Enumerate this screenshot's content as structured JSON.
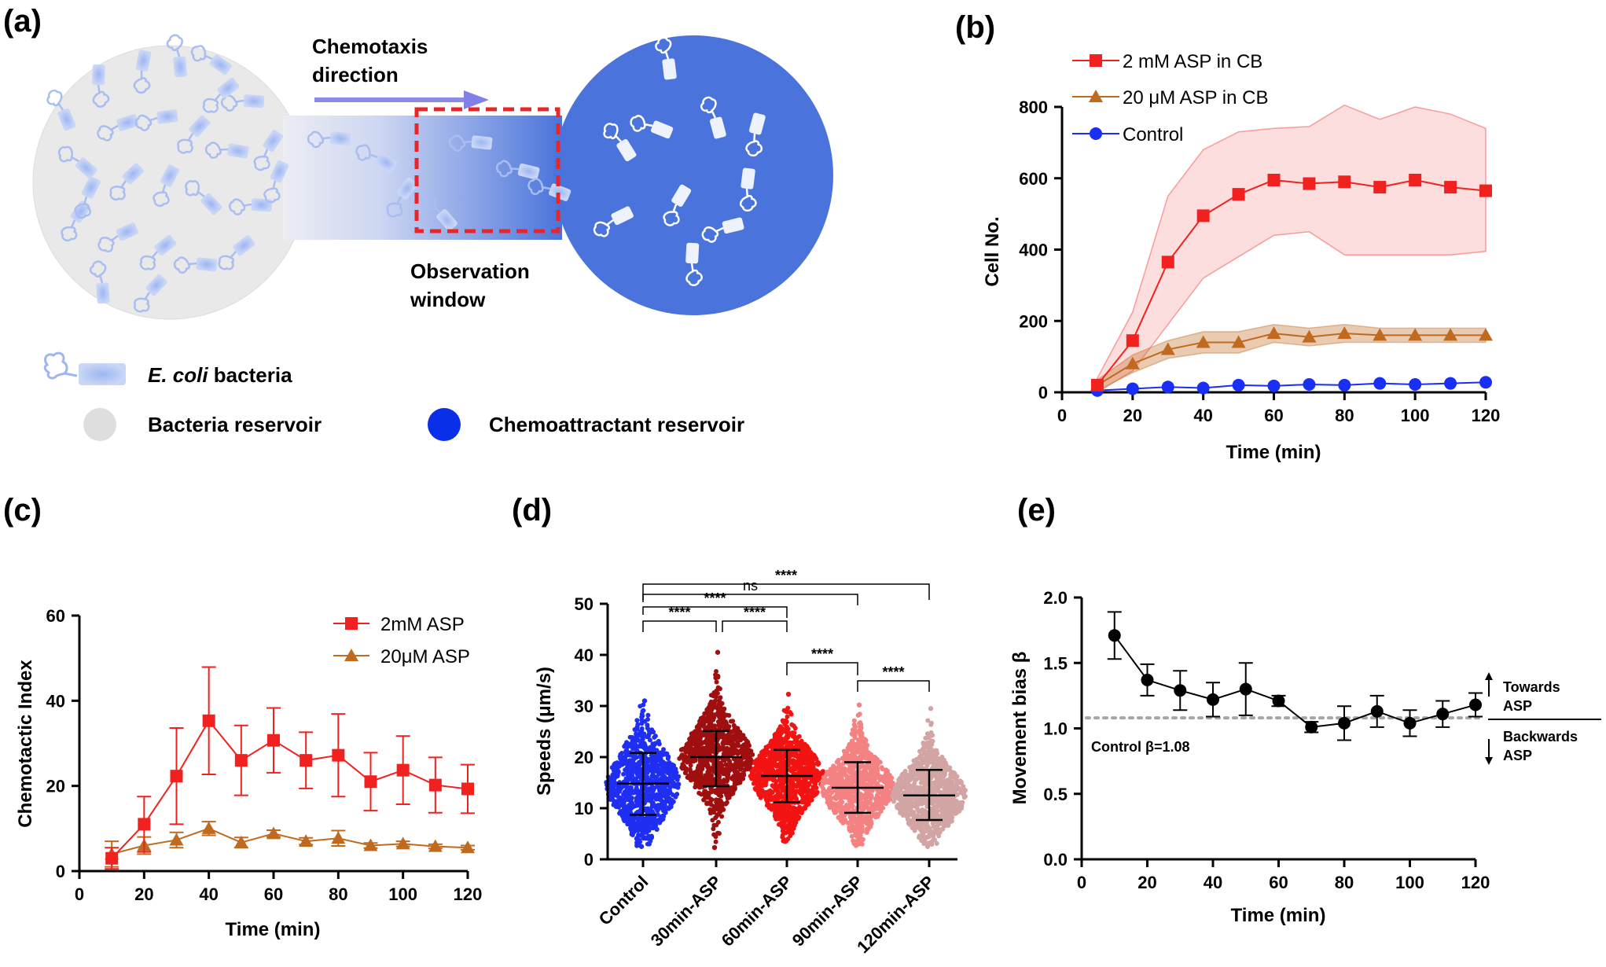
{
  "panels": {
    "a": "(a)",
    "b": "(b)",
    "c": "(c)",
    "d": "(d)",
    "e": "(e)"
  },
  "schematic": {
    "chemotaxis_label_1": "Chemotaxis",
    "chemotaxis_label_2": "direction",
    "observation_label_1": "Observation",
    "observation_label_2": "window",
    "legend_bacteria_italic": "E. coli",
    "legend_bacteria_rest": " bacteria",
    "legend_bacteria_reservoir": "Bacteria reservoir",
    "legend_chemo_reservoir": "Chemoattractant reservoir",
    "colors": {
      "bacteria_reservoir": "#e8e8e8",
      "chemo_reservoir": "#4a74db",
      "arrow": "#8080e6",
      "window": "#e8262a"
    }
  },
  "chart_data": [
    {
      "id": "b",
      "type": "line",
      "xlabel": "Time (min)",
      "ylabel": "Cell No.",
      "xlim": [
        0,
        120
      ],
      "ylim": [
        0,
        800
      ],
      "xticks": [
        "0",
        "20",
        "40",
        "60",
        "80",
        "100",
        "120"
      ],
      "yticks": [
        "0",
        "200",
        "400",
        "600",
        "800"
      ],
      "legend_position": "top-left",
      "x": [
        10,
        20,
        30,
        40,
        50,
        60,
        70,
        80,
        90,
        100,
        110,
        120
      ],
      "series": [
        {
          "name": "2 mM ASP in CB",
          "color": "#f0211f",
          "marker": "square",
          "values": [
            20,
            145,
            365,
            495,
            555,
            595,
            585,
            590,
            575,
            595,
            575,
            565
          ],
          "band_low": [
            0,
            60,
            190,
            320,
            380,
            440,
            450,
            385,
            385,
            385,
            385,
            395
          ],
          "band_high": [
            40,
            225,
            550,
            680,
            730,
            740,
            745,
            805,
            765,
            800,
            780,
            740
          ]
        },
        {
          "name": "20 μM ASP in CB",
          "color": "#c06a1f",
          "marker": "triangle",
          "values": [
            20,
            80,
            120,
            140,
            140,
            165,
            155,
            165,
            160,
            160,
            160,
            160
          ],
          "band_low": [
            5,
            55,
            95,
            110,
            110,
            140,
            130,
            140,
            140,
            140,
            140,
            140
          ],
          "band_high": [
            35,
            105,
            145,
            170,
            170,
            190,
            180,
            190,
            180,
            180,
            180,
            180
          ]
        },
        {
          "name": "Control",
          "color": "#1a2ff5",
          "marker": "circle",
          "values": [
            5,
            10,
            15,
            12,
            20,
            18,
            22,
            20,
            25,
            22,
            25,
            28
          ]
        }
      ]
    },
    {
      "id": "c",
      "type": "line",
      "xlabel": "Time (min)",
      "ylabel": "Chemotactic Index",
      "xlim": [
        0,
        120
      ],
      "ylim": [
        0,
        60
      ],
      "xticks": [
        "0",
        "20",
        "40",
        "60",
        "80",
        "100",
        "120"
      ],
      "yticks": [
        "0",
        "20",
        "40",
        "60"
      ],
      "legend_position": "top-right",
      "x": [
        10,
        20,
        30,
        40,
        50,
        60,
        70,
        80,
        90,
        100,
        110,
        120
      ],
      "series": [
        {
          "name": "2mM ASP",
          "color": "#f0211f",
          "marker": "square",
          "values": [
            3,
            11,
            22.3,
            35.3,
            26,
            30.7,
            26,
            27.2,
            21,
            23.7,
            20.2,
            19.3
          ],
          "err": [
            2.5,
            6.5,
            11.3,
            12.6,
            8.2,
            7.6,
            6.6,
            9.7,
            6.8,
            8,
            6.5,
            5.7
          ]
        },
        {
          "name": "20μM ASP",
          "color": "#c06a1f",
          "marker": "triangle",
          "values": [
            4,
            6,
            7.3,
            10,
            6.7,
            8.8,
            7,
            7.7,
            6,
            6.4,
            5.8,
            5.5
          ],
          "err": [
            3,
            2,
            1.8,
            1.6,
            1.2,
            0.8,
            0.8,
            1.8,
            0.6,
            0.6,
            0.5,
            0.5
          ]
        }
      ]
    },
    {
      "id": "d",
      "type": "scatter",
      "ylabel": "Speeds (μm/s)",
      "ylim": [
        0,
        50
      ],
      "yticks": [
        "0",
        "10",
        "20",
        "30",
        "40",
        "50"
      ],
      "categories": [
        "Control",
        "30min-ASP",
        "60min-ASP",
        "90min-ASP",
        "120min-ASP"
      ],
      "series": [
        {
          "name": "Control",
          "color": "#1f2ef2",
          "mean": 14.8,
          "sd_low": 8.7,
          "sd_high": 20.8,
          "min": 2.5,
          "max": 31
        },
        {
          "name": "30min-ASP",
          "color": "#a00f10",
          "mean": 20,
          "sd_low": 14.3,
          "sd_high": 25.1,
          "min": 2.3,
          "max": 40.5
        },
        {
          "name": "60min-ASP",
          "color": "#f21313",
          "mean": 16.3,
          "sd_low": 11.2,
          "sd_high": 21.4,
          "min": 3.5,
          "max": 32.3
        },
        {
          "name": "90min-ASP",
          "color": "#f48282",
          "mean": 14,
          "sd_low": 9.1,
          "sd_high": 19,
          "min": 2.7,
          "max": 30.2
        },
        {
          "name": "120min-ASP",
          "color": "#d3a4a4",
          "mean": 12.5,
          "sd_low": 7.7,
          "sd_high": 17.5,
          "min": 2.5,
          "max": 29.5
        }
      ],
      "annotations": [
        {
          "from": "Control",
          "to": "120min-ASP",
          "label": "****",
          "level": 4
        },
        {
          "from": "Control",
          "to": "90min-ASP",
          "label": "ns",
          "level": 3
        },
        {
          "from": "Control",
          "to": "60min-ASP",
          "label": "****",
          "level": 2
        },
        {
          "from": "Control",
          "to": "30min-ASP",
          "label": "****",
          "level": 1
        },
        {
          "from": "30min-ASP",
          "to": "60min-ASP",
          "label": "****",
          "level": 1
        },
        {
          "from": "60min-ASP",
          "to": "90min-ASP",
          "label": "****",
          "level": 0
        },
        {
          "from": "90min-ASP",
          "to": "120min-ASP",
          "label": "****",
          "level": 0
        }
      ]
    },
    {
      "id": "e",
      "type": "line",
      "xlabel": "Time (min)",
      "ylabel": "Movement bias β",
      "xlim": [
        0,
        120
      ],
      "ylim": [
        0,
        2
      ],
      "xticks": [
        "0",
        "20",
        "40",
        "60",
        "80",
        "100",
        "120"
      ],
      "yticks": [
        "0.0",
        "0.5",
        "1.0",
        "1.5",
        "2.0"
      ],
      "x": [
        10,
        20,
        30,
        40,
        50,
        60,
        70,
        80,
        90,
        100,
        110,
        120
      ],
      "series": [
        {
          "color": "#000000",
          "marker": "circle",
          "values": [
            1.71,
            1.37,
            1.29,
            1.22,
            1.3,
            1.21,
            1.01,
            1.04,
            1.13,
            1.04,
            1.11,
            1.18
          ],
          "err": [
            0.18,
            0.12,
            0.15,
            0.13,
            0.2,
            0.04,
            0.04,
            0.13,
            0.12,
            0.1,
            0.1,
            0.09
          ]
        }
      ],
      "reference_line": {
        "value": 1.08,
        "label": "Control β=1.08",
        "color": "#a6a6a6"
      },
      "side_labels": {
        "up_1": "Towards",
        "up_2": "ASP",
        "down_1": "Backwards",
        "down_2": "ASP"
      }
    }
  ]
}
